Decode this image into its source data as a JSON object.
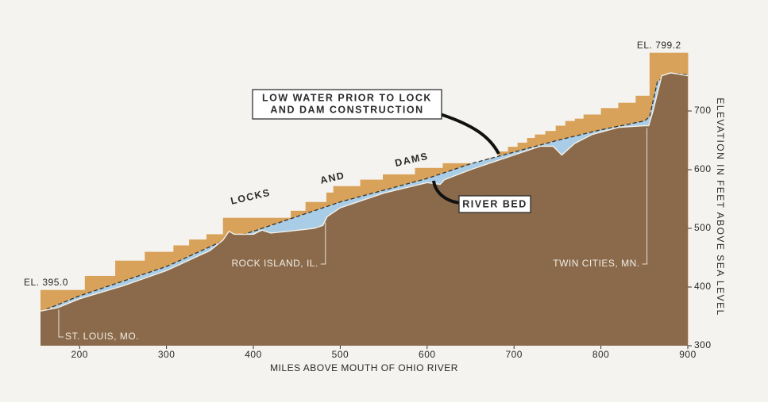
{
  "chart_data": {
    "type": "profile",
    "x_label": "MILES ABOVE MOUTH OF OHIO RIVER",
    "y_label": "ELEVATION IN FEET ABOVE SEA LEVEL",
    "xlim": [
      155,
      900
    ],
    "xticks": [
      200,
      300,
      400,
      500,
      600,
      700,
      800,
      900
    ],
    "ylim": [
      300,
      800
    ],
    "yticks": [
      300,
      400,
      500,
      600,
      700
    ],
    "series": [
      {
        "name": "LOCKS AND DAMS",
        "kind": "step",
        "color": "#d9a25a",
        "x": [
          155,
          206,
          241,
          275,
          308,
          326,
          346,
          365,
          443,
          460,
          484,
          492,
          523,
          549,
          586,
          618,
          670,
          682,
          693,
          704,
          715,
          724,
          736,
          748,
          759,
          770,
          780,
          800,
          820,
          840,
          856
        ],
        "values": [
          395.0,
          419,
          445,
          460,
          471,
          481,
          490,
          518,
          530,
          545,
          561,
          572,
          583,
          592,
          603,
          611,
          620,
          631,
          639,
          646,
          654,
          660,
          666,
          675,
          683,
          687,
          694,
          705,
          714,
          726,
          799.2
        ]
      },
      {
        "name": "LOW WATER PRIOR TO LOCK AND DAM CONSTRUCTION",
        "kind": "line",
        "color": "#333333",
        "fill": "#a9cde6",
        "x": [
          155,
          200,
          250,
          300,
          364,
          400,
          450,
          500,
          550,
          600,
          650,
          700,
          750,
          800,
          850,
          856,
          865,
          880,
          900
        ],
        "values": [
          358,
          385,
          410,
          435,
          478,
          495,
          520,
          545,
          565,
          585,
          610,
          630,
          650,
          668,
          683,
          690,
          750,
          765,
          762
        ]
      },
      {
        "name": "RIVER BED",
        "kind": "area",
        "color": "#8a6a4b",
        "x": [
          155,
          175,
          200,
          250,
          300,
          350,
          365,
          372,
          378,
          400,
          410,
          420,
          440,
          470,
          480,
          485,
          500,
          550,
          600,
          615,
          620,
          650,
          700,
          730,
          745,
          755,
          770,
          790,
          820,
          850,
          855,
          860,
          870,
          880,
          890,
          900
        ],
        "values": [
          359,
          365,
          380,
          402,
          428,
          462,
          480,
          495,
          490,
          490,
          497,
          492,
          495,
          500,
          505,
          520,
          535,
          560,
          578,
          575,
          583,
          600,
          625,
          640,
          640,
          625,
          645,
          660,
          672,
          675,
          675,
          700,
          760,
          765,
          763,
          760
        ]
      }
    ],
    "annotations": [
      {
        "text": "EL. 395.0",
        "x": 155,
        "y": 395.0
      },
      {
        "text": "EL. 799.2",
        "x": 856,
        "y": 799.2
      }
    ],
    "callouts": [
      {
        "lines": [
          "LOW WATER PRIOR TO LOCK",
          "AND DAM CONSTRUCTION"
        ]
      },
      {
        "lines": [
          "RIVER BED"
        ]
      }
    ],
    "places": [
      {
        "text": "ST. LOUIS, MO.",
        "x": 176
      },
      {
        "text": "ROCK ISLAND, IL.",
        "x": 483
      },
      {
        "text": "TWIN CITIES, MN.",
        "x": 853
      }
    ]
  }
}
